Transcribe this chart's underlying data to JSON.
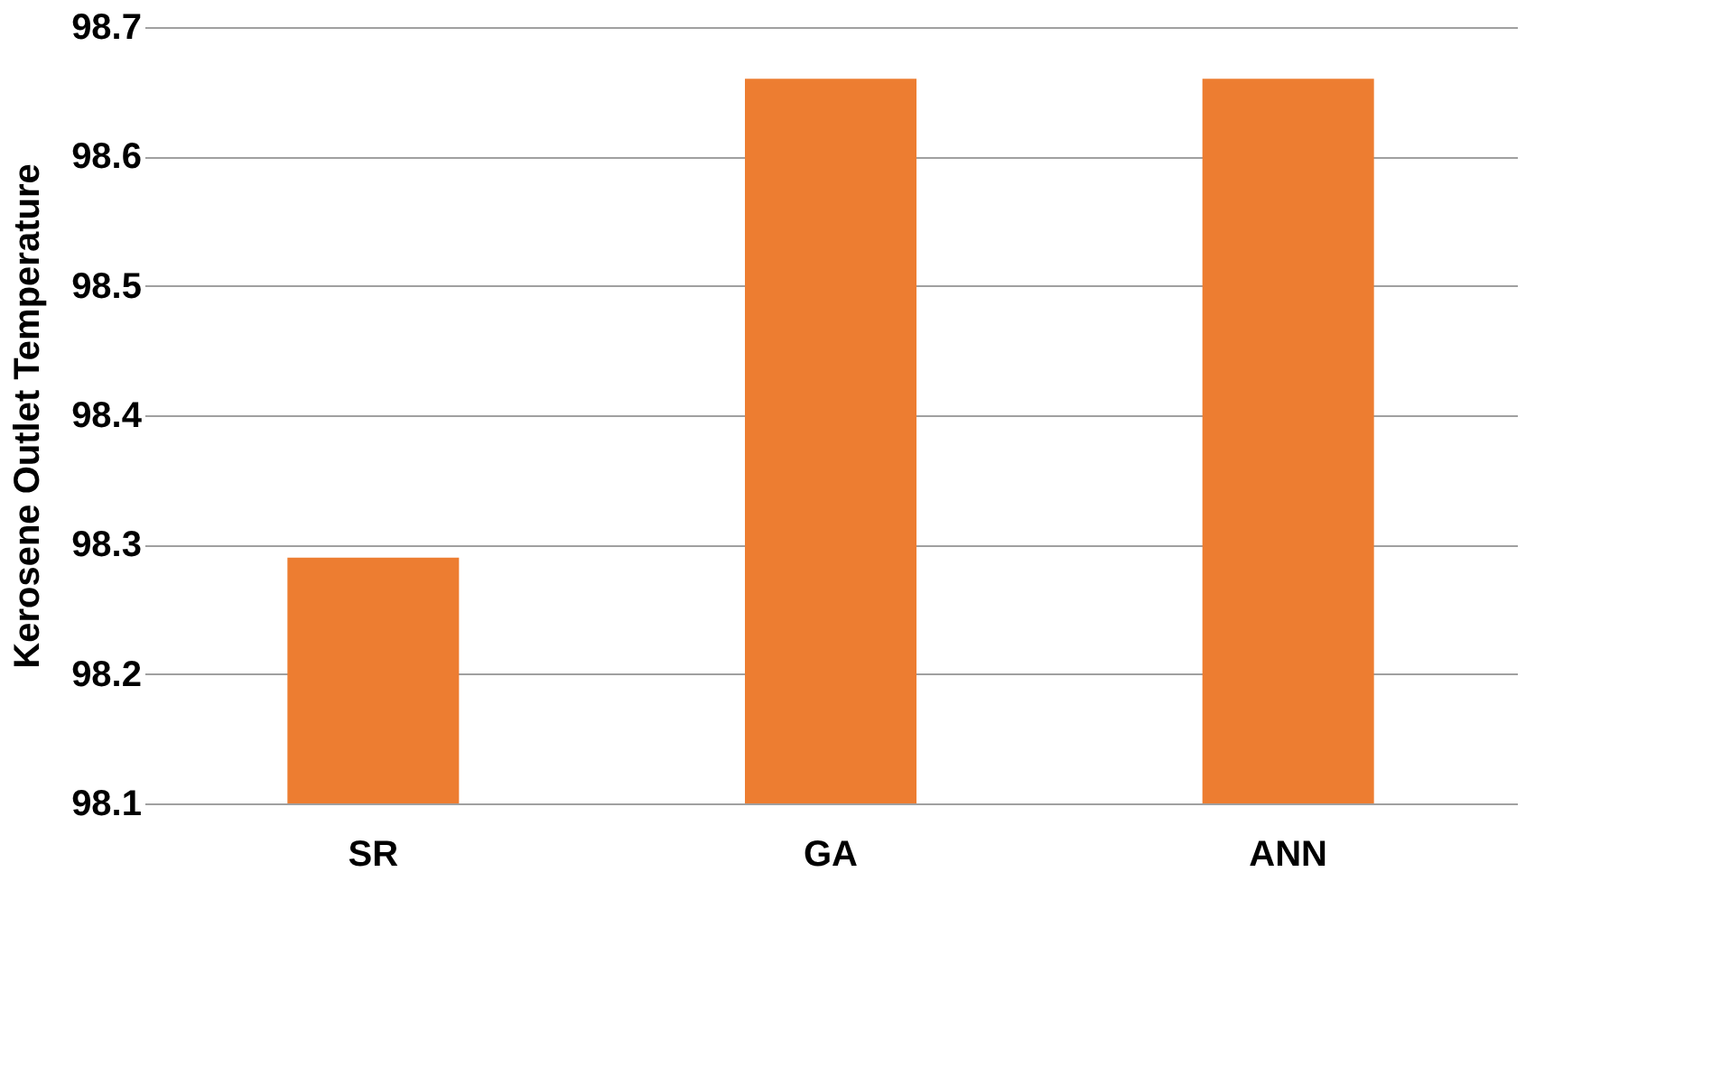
{
  "chart_data": {
    "type": "bar",
    "ylabel": "Kerosene Outlet Temperature",
    "categories": [
      "SR",
      "GA",
      "ANN"
    ],
    "values": [
      98.29,
      98.66,
      98.66
    ],
    "color": "#ed7d31",
    "ylim": [
      98.1,
      98.7
    ],
    "yticks": [
      98.1,
      98.2,
      98.3,
      98.4,
      98.5,
      98.6,
      98.7
    ],
    "grid": "y"
  }
}
